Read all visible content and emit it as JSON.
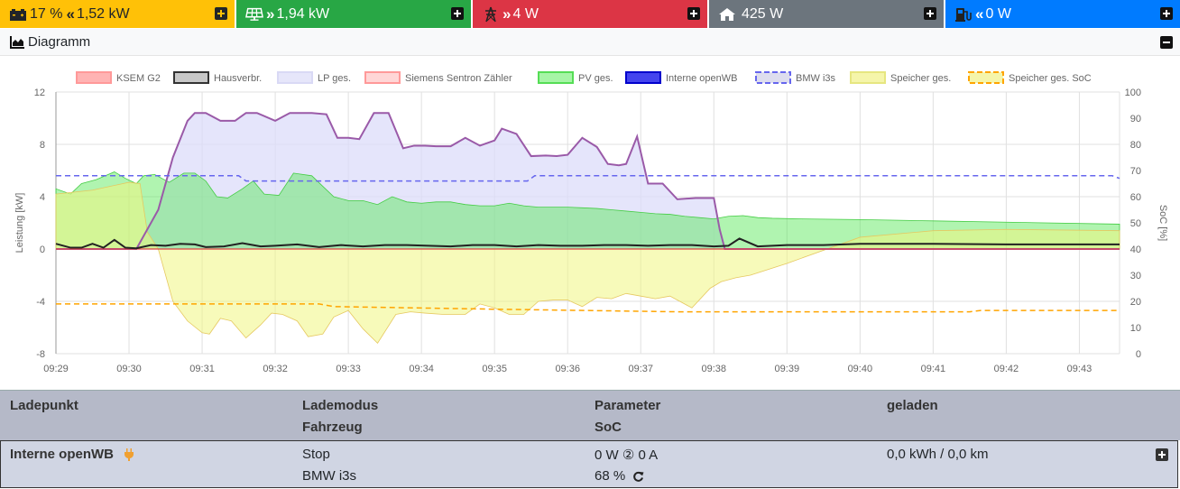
{
  "tiles": [
    {
      "id": "battery",
      "text": "17 % ",
      "arrow": "«",
      "value": "1,52 kW",
      "bg": "#ffc107",
      "fg": "#212529",
      "icon": "battery-icon"
    },
    {
      "id": "pv",
      "text": "",
      "arrow": "»",
      "value": "1,94 kW",
      "bg": "#28a745",
      "fg": "#ffffff",
      "icon": "solar-panel-icon"
    },
    {
      "id": "grid",
      "text": "",
      "arrow": "»",
      "value": "4 W",
      "bg": "#dc3545",
      "fg": "#ffffff",
      "icon": "power-pylon-icon"
    },
    {
      "id": "house",
      "text": "",
      "arrow": "",
      "value": "425 W",
      "bg": "#6c757d",
      "fg": "#ffffff",
      "icon": "home-icon"
    },
    {
      "id": "charge",
      "text": "",
      "arrow": "«",
      "value": "0 W",
      "bg": "#007bff",
      "fg": "#ffffff",
      "icon": "charging-station-icon"
    }
  ],
  "diagram": {
    "title": "Diagramm"
  },
  "chart_data": {
    "type": "area",
    "xlabels": [
      "09:29",
      "09:30",
      "09:31",
      "09:32",
      "09:33",
      "09:34",
      "09:35",
      "09:36",
      "09:37",
      "09:38",
      "09:39",
      "09:40",
      "09:41",
      "09:42",
      "09:43"
    ],
    "ylabel": "Leistung [kW]",
    "y2label": "SoC [%]",
    "ylim": [
      -8,
      12
    ],
    "yticks": [
      -8,
      -4,
      0,
      4,
      8,
      12
    ],
    "y2lim": [
      0,
      100
    ],
    "y2ticks": [
      0,
      10,
      20,
      30,
      40,
      50,
      60,
      70,
      80,
      90,
      100
    ],
    "legend": [
      {
        "name": "KSEM G2",
        "color": "#ff9999",
        "fill": "#ffb3b3",
        "style": "box"
      },
      {
        "name": "Hausverbr.",
        "color": "#333333",
        "fill": "#c8c8c8",
        "style": "box"
      },
      {
        "name": "LP ges.",
        "color": "#d9d9f5",
        "fill": "#e6e6fa",
        "style": "box"
      },
      {
        "name": "Siemens Sentron Zähler",
        "color": "#ff9999",
        "fill": "#ffd6d6",
        "style": "box"
      },
      {
        "name": "PV ges.",
        "color": "#55dd55",
        "fill": "#a6f5a6",
        "style": "box"
      },
      {
        "name": "Interne openWB",
        "color": "#0000cc",
        "fill": "#4444ee",
        "style": "box"
      },
      {
        "name": "BMW i3s",
        "color": "#6666ee",
        "fill": "#ddddee",
        "style": "dashed"
      },
      {
        "name": "Speicher ges.",
        "color": "#e6e680",
        "fill": "#f5f5aa",
        "style": "box"
      },
      {
        "name": "Speicher ges. SoC",
        "color": "#ffa500",
        "fill": "#f5f5aa",
        "style": "dashed"
      }
    ],
    "series": {
      "lp": {
        "x": [
          0,
          0.95,
          1.1,
          1.4,
          1.6,
          1.8,
          1.9,
          2.05,
          2.25,
          2.45,
          2.6,
          2.75,
          3.0,
          3.2,
          3.35,
          3.5,
          3.7,
          3.85,
          4.0,
          4.15,
          4.35,
          4.55,
          4.75,
          4.9,
          5.05,
          5.2,
          5.4,
          5.6,
          5.8,
          6.0,
          6.1,
          6.3,
          6.5,
          6.7,
          6.85,
          7.0,
          7.2,
          7.4,
          7.55,
          7.7,
          7.8,
          7.95,
          8.1,
          8.3,
          8.5,
          8.75,
          9.0,
          9.08,
          9.15,
          9.3,
          14.55
        ],
        "y": [
          0,
          0,
          0,
          3,
          7,
          9.8,
          10.4,
          10.4,
          9.8,
          9.8,
          10.4,
          10.4,
          9.8,
          10.4,
          10.4,
          10.4,
          10.3,
          8.5,
          8.5,
          8.4,
          10.4,
          10.4,
          7.7,
          7.9,
          7.9,
          7.85,
          7.85,
          8.5,
          7.9,
          8.3,
          9.2,
          8.8,
          7.1,
          7.15,
          7.1,
          7.2,
          8.5,
          7.8,
          6.5,
          6.4,
          6.5,
          8.6,
          5.0,
          5.0,
          3.8,
          3.9,
          3.9,
          1.5,
          0,
          0,
          0
        ]
      },
      "pv": {
        "x": [
          0,
          0.2,
          0.35,
          0.55,
          0.8,
          0.95,
          1.1,
          1.2,
          1.35,
          1.55,
          1.75,
          1.9,
          2.05,
          2.2,
          2.35,
          2.55,
          2.7,
          2.85,
          3.05,
          3.25,
          3.5,
          3.65,
          3.8,
          4.0,
          4.2,
          4.4,
          4.6,
          4.8,
          5.0,
          5.2,
          5.4,
          5.6,
          5.8,
          6.0,
          6.2,
          6.4,
          6.6,
          6.8,
          7.0,
          7.2,
          7.4,
          7.6,
          7.8,
          8.0,
          8.2,
          8.4,
          8.6,
          8.8,
          9.0,
          9.2,
          9.4,
          9.6,
          9.8,
          10.2,
          11,
          12,
          13,
          14.55
        ],
        "y": [
          4.6,
          4.2,
          5.0,
          5.3,
          5.9,
          5.4,
          5.0,
          5.6,
          5.7,
          5.1,
          5.8,
          5.8,
          5.2,
          4.0,
          3.9,
          4.6,
          5.2,
          4.2,
          4.1,
          5.8,
          5.6,
          4.8,
          4.0,
          3.7,
          3.7,
          3.4,
          4.0,
          3.6,
          3.5,
          3.6,
          3.6,
          3.4,
          3.3,
          3.3,
          3.5,
          3.3,
          3.2,
          3.2,
          3.2,
          3.15,
          3.1,
          3.0,
          2.9,
          2.8,
          2.7,
          2.65,
          2.5,
          2.4,
          2.3,
          2.5,
          2.55,
          2.4,
          2.35,
          2.3,
          2.25,
          2.15,
          2.05,
          1.9
        ]
      },
      "speicher": {
        "x": [
          0,
          0.5,
          1.0,
          1.15,
          1.25,
          1.4,
          1.6,
          1.8,
          2.0,
          2.1,
          2.25,
          2.4,
          2.6,
          2.8,
          2.95,
          3.1,
          3.3,
          3.45,
          3.65,
          3.8,
          4.0,
          4.2,
          4.4,
          4.65,
          4.85,
          5.05,
          5.3,
          5.6,
          5.8,
          6.0,
          6.2,
          6.4,
          6.6,
          6.8,
          7.0,
          7.2,
          7.4,
          7.6,
          7.8,
          8.0,
          8.2,
          8.4,
          8.7,
          8.95,
          9.1,
          9.3,
          9.5,
          10,
          11,
          12,
          13,
          14.55
        ],
        "y": [
          4.2,
          4.5,
          5.1,
          5.0,
          1.3,
          0,
          -4,
          -5.5,
          -6.4,
          -6.5,
          -5.3,
          -5.5,
          -6.8,
          -5.8,
          -4.9,
          -5.0,
          -5.5,
          -6.7,
          -6.5,
          -5.2,
          -4.7,
          -6.1,
          -7.2,
          -5.0,
          -4.8,
          -4.9,
          -5.0,
          -5.0,
          -4.2,
          -4.5,
          -5.0,
          -5.0,
          -4.0,
          -3.9,
          -3.9,
          -4.4,
          -3.7,
          -3.8,
          -3.4,
          -3.6,
          -3.8,
          -3.6,
          -4.5,
          -3.0,
          -2.5,
          -2.2,
          -2.0,
          -1.1,
          0.9,
          1.4,
          1.5,
          1.4
        ]
      },
      "haus": {
        "x": [
          0,
          0.2,
          0.35,
          0.5,
          0.65,
          0.8,
          0.95,
          1.1,
          1.3,
          1.5,
          1.7,
          1.9,
          2.05,
          2.3,
          2.55,
          2.8,
          3.0,
          3.3,
          3.6,
          3.9,
          4.2,
          4.5,
          4.8,
          5.1,
          5.4,
          5.7,
          6.0,
          6.3,
          6.6,
          6.9,
          7.2,
          7.5,
          7.8,
          8.1,
          8.4,
          8.7,
          9.0,
          9.2,
          9.35,
          9.6,
          10,
          10.5,
          11,
          12,
          13,
          14.55
        ],
        "y": [
          0.4,
          0.1,
          0.1,
          0.4,
          0.1,
          0.7,
          0.1,
          0.05,
          0.3,
          0.25,
          0.4,
          0.35,
          0.15,
          0.2,
          0.45,
          0.2,
          0.25,
          0.35,
          0.15,
          0.3,
          0.2,
          0.3,
          0.3,
          0.25,
          0.2,
          0.3,
          0.3,
          0.2,
          0.3,
          0.25,
          0.25,
          0.3,
          0.3,
          0.25,
          0.3,
          0.3,
          0.2,
          0.25,
          0.8,
          0.2,
          0.3,
          0.3,
          0.4,
          0.4,
          0.35,
          0.35
        ]
      },
      "bmw_soc": {
        "x": [
          0,
          1.5,
          2.35,
          2.5,
          2.6,
          3.0,
          4.0,
          5.0,
          6.0,
          6.45,
          6.5,
          6.55,
          7.0,
          8.0,
          9.0,
          10,
          11,
          12,
          13,
          14.45,
          14.55
        ],
        "y": [
          68,
          68,
          68,
          68,
          66,
          66,
          66,
          66,
          66,
          66,
          67,
          68,
          68,
          68,
          68,
          68,
          68,
          68,
          68,
          68,
          67
        ]
      },
      "speicher_soc": {
        "x": [
          0,
          3.6,
          3.8,
          6.0,
          8.5,
          8.6,
          10,
          12,
          12.5,
          12.65,
          14.55
        ],
        "y": [
          19,
          19,
          18,
          17,
          16,
          16,
          16,
          16,
          16,
          16.5,
          16.5
        ]
      }
    }
  },
  "table": {
    "headers": {
      "col1": "Ladepunkt",
      "col2a": "Lademodus",
      "col2b": "Fahrzeug",
      "col3a": "Parameter",
      "col3b": "SoC",
      "col4": "geladen"
    },
    "row": {
      "name": "Interne openWB",
      "mode": "Stop",
      "vehicle": "BMW i3s",
      "params": "0 W ② 0 A",
      "soc": "68 %",
      "charged": "0,0 kWh / 0,0 km"
    }
  }
}
